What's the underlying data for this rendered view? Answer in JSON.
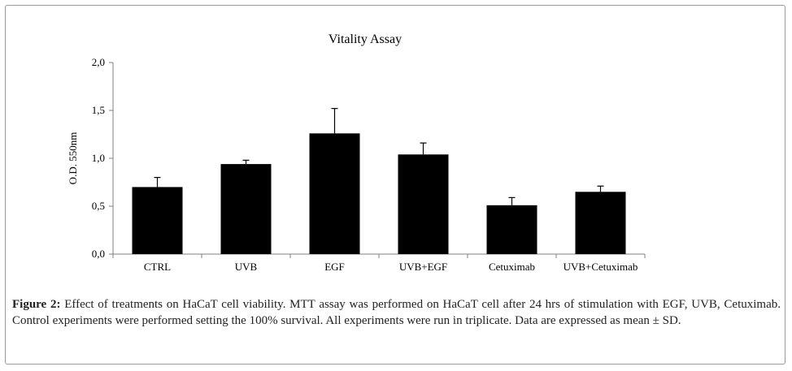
{
  "chart_data": {
    "type": "bar",
    "title": "Vitality Assay",
    "xlabel": "",
    "ylabel": "O.D. 550nm",
    "ylim": [
      0,
      2.0
    ],
    "yticks": [
      "0,0",
      "0,5",
      "1,0",
      "1,5",
      "2,0"
    ],
    "yticks_values": [
      0,
      0.5,
      1.0,
      1.5,
      2.0
    ],
    "categories": [
      "CTRL",
      "UVB",
      "EGF",
      "UVB+EGF",
      "Cetuximab",
      "UVB+Cetuximab"
    ],
    "values": [
      0.7,
      0.94,
      1.26,
      1.04,
      0.51,
      0.65
    ],
    "errors": [
      0.1,
      0.04,
      0.26,
      0.12,
      0.08,
      0.06
    ],
    "bar_color": "#000000",
    "grid": false,
    "legend": "none"
  },
  "caption": {
    "label": "Figure 2:",
    "text": "Effect of treatments on HaCaT cell viability. MTT assay was performed on HaCaT cell after 24 hrs of stimulation with EGF, UVB, Cetuximab. Control experiments were performed setting the 100% survival. All experiments were run in triplicate. Data are expressed as mean ± SD."
  }
}
